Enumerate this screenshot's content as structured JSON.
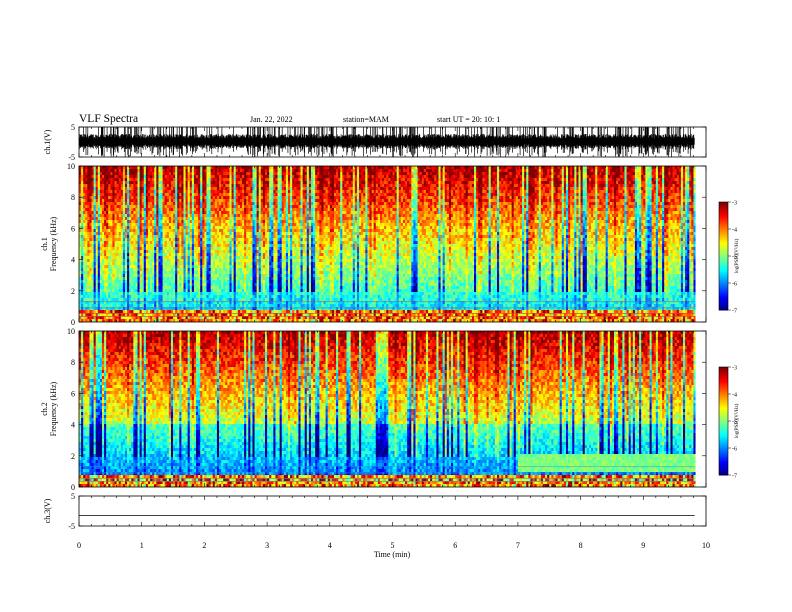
{
  "header": {
    "title": "VLF Spectra",
    "date": "Jan. 22, 2022",
    "station": "station=MAM",
    "start": "start  UT  =   20: 10: 1"
  },
  "chart_data": [
    {
      "type": "line",
      "panel": "ch1-waveform",
      "ylabel": "ch.1(V)",
      "yticks": [
        "5",
        "-5"
      ],
      "ylim": [
        -5,
        5
      ],
      "xlim": [
        0,
        10
      ],
      "description_visible": "dense impulsive waveform spanning about -5 to 5 V"
    },
    {
      "type": "heatmap",
      "panel": "ch1-spectrogram",
      "ylabel_line1": "ch.1",
      "ylabel_line2": "Frequency  (kHz)",
      "yticks": [
        "0",
        "2",
        "4",
        "6",
        "8",
        "10"
      ],
      "ylim": [
        0,
        10
      ],
      "xlim": [
        0,
        10
      ],
      "colorbar": {
        "label": "log(PSD)(V²/Hz)",
        "ticks": [
          "-3",
          "-4",
          "-5",
          "-6",
          "-7"
        ],
        "range": [
          -7,
          -3
        ]
      }
    },
    {
      "type": "heatmap",
      "panel": "ch2-spectrogram",
      "ylabel_line1": "ch.2",
      "ylabel_line2": "Frequency  (kHz)",
      "yticks": [
        "0",
        "2",
        "4",
        "6",
        "8",
        "10"
      ],
      "ylim": [
        0,
        10
      ],
      "xlim": [
        0,
        10
      ],
      "colorbar": {
        "label": "log(PSD)(V²/Hz)",
        "ticks": [
          "-3",
          "-4",
          "-5",
          "-6",
          "-7"
        ],
        "range": [
          -7,
          -3
        ]
      }
    },
    {
      "type": "line",
      "panel": "ch3-waveform",
      "ylabel": "ch.3(V)",
      "yticks": [
        "5",
        "-5"
      ],
      "ylim": [
        -5,
        5
      ],
      "xlim": [
        0,
        10
      ],
      "values_constant": -1.5
    }
  ],
  "xaxis": {
    "label": "Time  (min)",
    "ticks": [
      "0",
      "1",
      "2",
      "3",
      "4",
      "5",
      "6",
      "7",
      "8",
      "9",
      "10"
    ]
  },
  "colors": {
    "background": "#ffffff",
    "axes": "#000000"
  }
}
